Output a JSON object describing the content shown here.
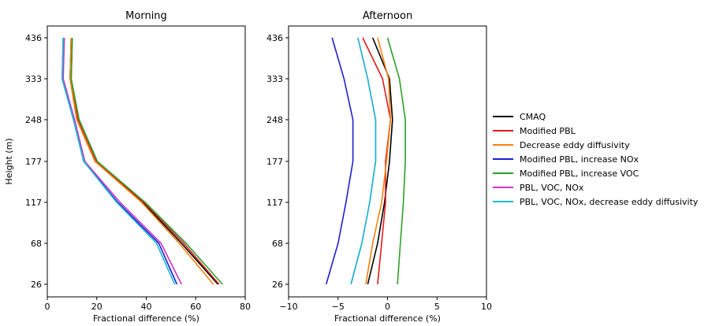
{
  "chart_data": [
    {
      "type": "line",
      "title": "Morning",
      "xlabel": "Fractional difference (%)",
      "ylabel": "Height (m)",
      "xlim": [
        0,
        87
      ],
      "xticks": [
        "0",
        "20",
        "40",
        "60",
        "80"
      ],
      "yticks": [
        "26",
        "68",
        "117",
        "177",
        "248",
        "333",
        "436"
      ],
      "series": [
        {
          "name": "CMAQ",
          "color": "#000000",
          "values": [
            75,
            59,
            42,
            21,
            13,
            10,
            10.5
          ]
        },
        {
          "name": "Modified PBL",
          "color": "#e41a1c",
          "values": [
            75.5,
            60,
            42.5,
            21.5,
            13.5,
            10.5,
            11
          ]
        },
        {
          "name": "Decrease eddy diffusivity",
          "color": "#ff7f0e",
          "values": [
            73,
            58,
            41.5,
            21,
            13,
            10,
            10.5
          ]
        },
        {
          "name": "Modified PBL, increase NOx",
          "color": "#1f1fd6",
          "values": [
            57,
            49,
            31,
            16,
            11.5,
            6.5,
            7
          ]
        },
        {
          "name": "Modified PBL, increase VOC",
          "color": "#2ca02c",
          "values": [
            77,
            61,
            43,
            22,
            14,
            10.5,
            11
          ]
        },
        {
          "name": "PBL, VOC, NOx",
          "color": "#cc33cc",
          "values": [
            59,
            50,
            32,
            16.5,
            12,
            7,
            7.5
          ]
        },
        {
          "name": "PBL, VOC, NOx, decrease eddy diffusivity",
          "color": "#17becf",
          "values": [
            56,
            48,
            30.5,
            16,
            11.5,
            6.5,
            7
          ]
        }
      ]
    },
    {
      "type": "line",
      "title": "Afternoon",
      "xlabel": "Fractional difference (%)",
      "ylabel": "",
      "xlim": [
        -10,
        10
      ],
      "xticks": [
        "−10",
        "−5",
        "0",
        "5",
        "10"
      ],
      "yticks": [
        "26",
        "68",
        "117",
        "177",
        "248",
        "333",
        "436"
      ],
      "series": [
        {
          "name": "CMAQ",
          "color": "#000000",
          "values": [
            -2,
            -1,
            -0.3,
            0.2,
            0.5,
            0.2,
            -1.5
          ]
        },
        {
          "name": "Modified PBL",
          "color": "#e41a1c",
          "values": [
            -1,
            -0.6,
            -0.2,
            -0.2,
            0.3,
            -0.5,
            -2.5
          ]
        },
        {
          "name": "Decrease eddy diffusivity",
          "color": "#ff7f0e",
          "values": [
            -2.2,
            -1.5,
            -0.6,
            -0.1,
            0.3,
            0.1,
            -1
          ]
        },
        {
          "name": "Modified PBL, increase NOx",
          "color": "#1f1fd6",
          "values": [
            -6.2,
            -5,
            -4.2,
            -3.5,
            -3.5,
            -4.4,
            -5.6
          ]
        },
        {
          "name": "Modified PBL, increase VOC",
          "color": "#2ca02c",
          "values": [
            1,
            1.3,
            1.6,
            1.8,
            1.8,
            1.2,
            0
          ]
        },
        {
          "name": "PBL, VOC, NOx",
          "color": "#cc33cc",
          "values": [
            -3.7,
            -2.6,
            -1.8,
            -1.2,
            -1.2,
            -2.0,
            -3.0
          ]
        },
        {
          "name": "PBL, VOC, NOx, decrease eddy diffusivity",
          "color": "#17becf",
          "values": [
            -3.7,
            -2.6,
            -1.8,
            -1.2,
            -1.2,
            -2.0,
            -3.0
          ]
        }
      ]
    }
  ]
}
